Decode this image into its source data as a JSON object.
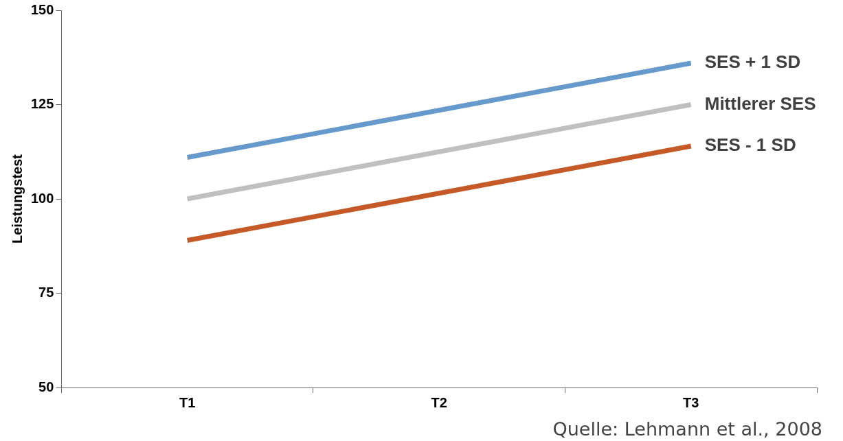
{
  "chart_data": {
    "type": "line",
    "ylabel": "Leistungstest",
    "categories": [
      "T1",
      "T2",
      "T3"
    ],
    "series": [
      {
        "name": "SES + 1 SD",
        "color": "#6699cc",
        "values": [
          111,
          123.5,
          136
        ]
      },
      {
        "name": "Mittlerer SES",
        "color": "#c0c0c0",
        "values": [
          100,
          112.5,
          125
        ]
      },
      {
        "name": "SES - 1 SD",
        "color": "#c55a28",
        "values": [
          89,
          101.5,
          114
        ]
      }
    ],
    "ylim": [
      50,
      150
    ],
    "yticks": [
      50,
      75,
      100,
      125,
      150
    ],
    "grid": false,
    "legend": false,
    "marker": "none",
    "line_style": "solid",
    "annotations": [
      "Quelle: Lehmann et al., 2008"
    ]
  }
}
